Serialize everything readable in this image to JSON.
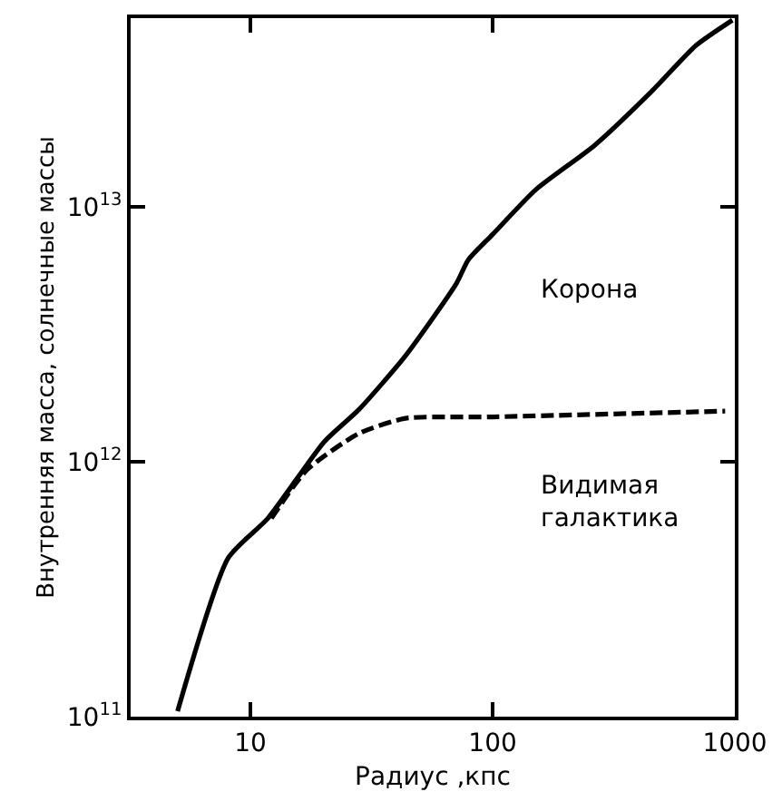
{
  "chart_data": {
    "type": "line",
    "xlabel": "Радиус ,кпс",
    "ylabel": "Внутренняя масса, солнечные массы",
    "log": "xy",
    "legend": false,
    "marker": "none",
    "xlim": [
      3.2,
      1000
    ],
    "ylim": [
      100000000000.0,
      55000000000000.0
    ],
    "xticks": [
      10,
      100,
      1000
    ],
    "yticks": [
      {
        "value": 100000000000.0,
        "label": "10$^{11}$"
      },
      {
        "value": 1000000000000.0,
        "label": "10$^{12}$"
      },
      {
        "value": 10000000000000.0,
        "label": "10$^{13}$"
      }
    ],
    "series": [
      {
        "name": "Корона",
        "color": "#000000",
        "line_style": "solid",
        "x": [
          5.0,
          8.1,
          11.8,
          20.2,
          28,
          43.6,
          70.8,
          79.4,
          100,
          151,
          263,
          447,
          692,
          977
        ],
        "values": [
          105000000000.0,
          420000000000.0,
          600000000000.0,
          1200000000000.0,
          1600000000000.0,
          2600000000000.0,
          5000000000000.0,
          6200000000000.0,
          7800000000000.0,
          11700000000000.0,
          17400000000000.0,
          28000000000000.0,
          43000000000000.0,
          54000000000000.0
        ]
      },
      {
        "name": "Видимая галактика",
        "color": "#000000",
        "line_style": "dashed",
        "x": [
          12.2,
          17.1,
          28,
          43.6,
          100,
          912
        ],
        "values": [
          600000000000.0,
          930000000000.0,
          1290000000000.0,
          1480000000000.0,
          1500000000000.0,
          1580000000000.0
        ]
      }
    ]
  }
}
